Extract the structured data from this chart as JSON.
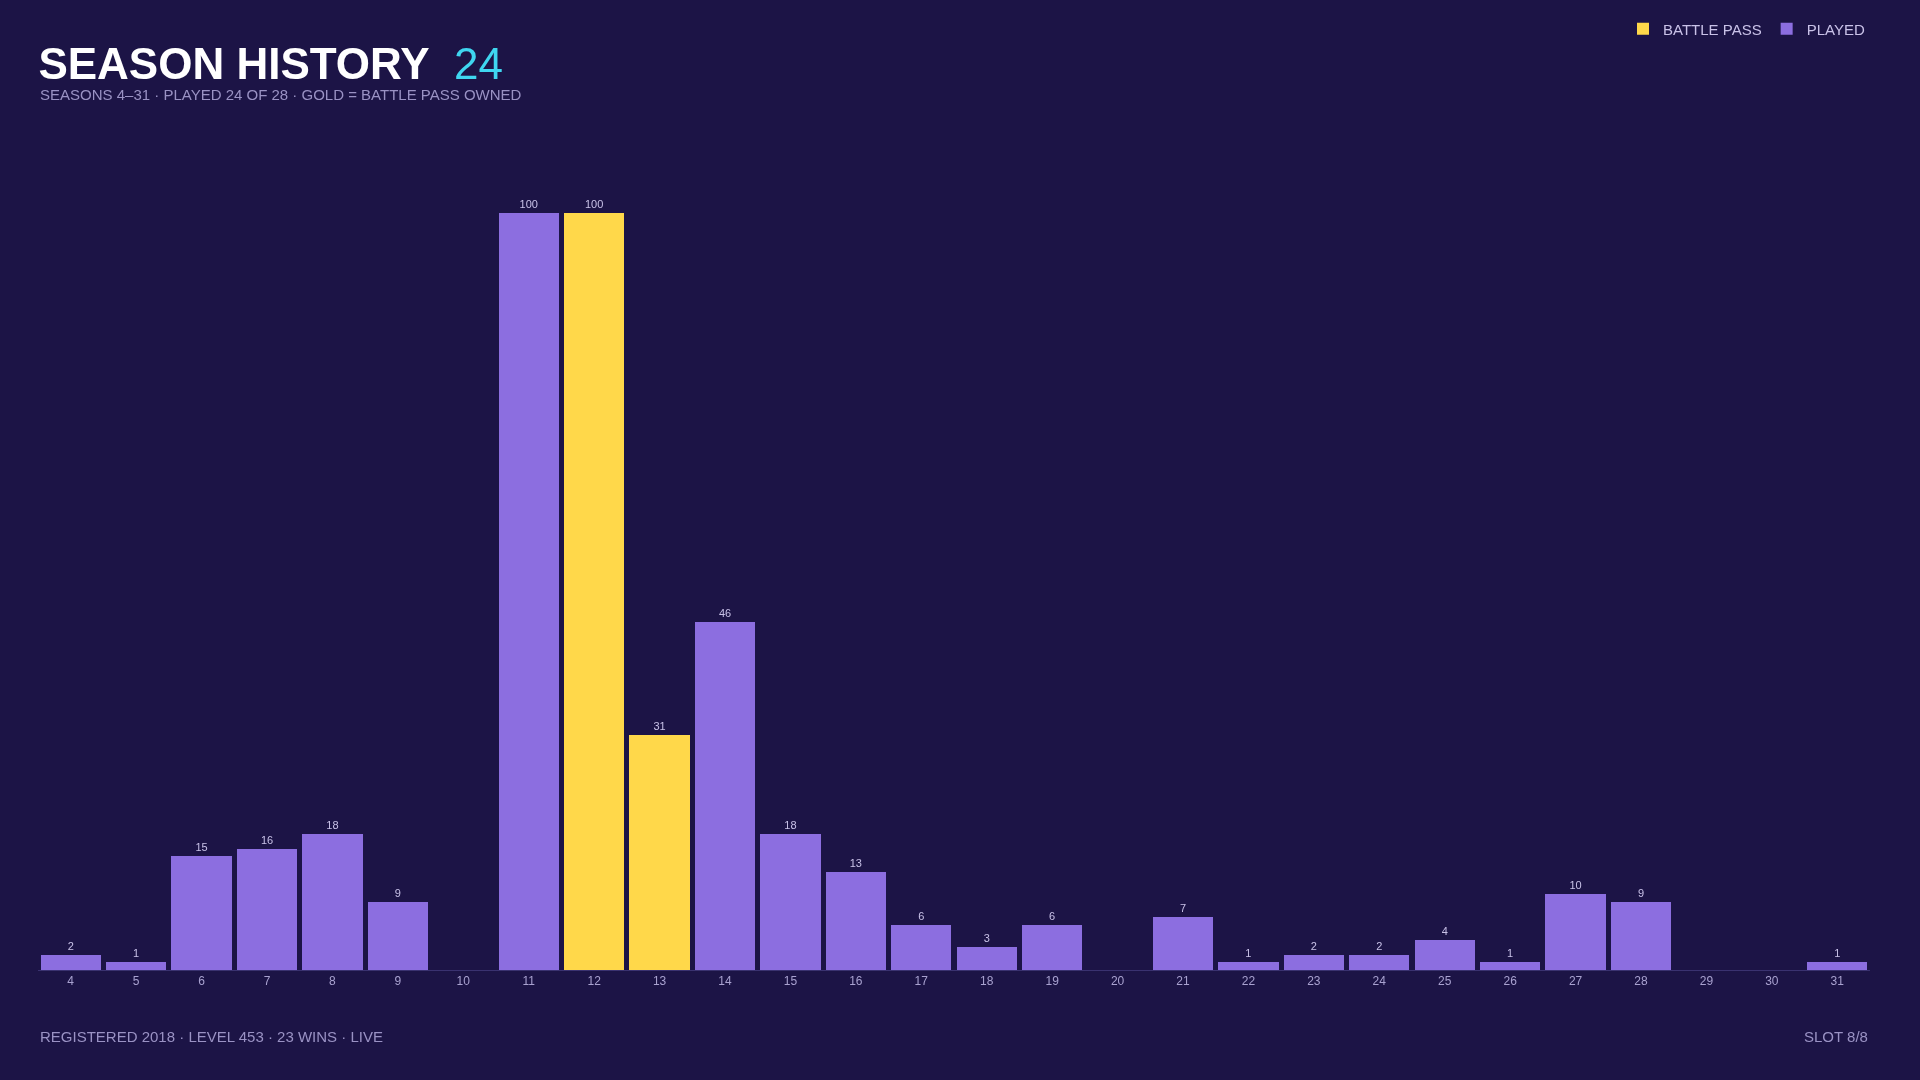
{
  "chart_data": {
    "type": "bar",
    "title": "SEASON HISTORY 24",
    "subtitle": "SEASONS 4–31 · PLAYED 24 OF 28 · GOLD = BATTLE PASS OWNED",
    "categories": [
      "4",
      "5",
      "6",
      "7",
      "8",
      "9",
      "10",
      "11",
      "12",
      "13",
      "14",
      "15",
      "16",
      "17",
      "18",
      "19",
      "20",
      "21",
      "22",
      "23",
      "24",
      "25",
      "26",
      "27",
      "28",
      "29",
      "30",
      "31"
    ],
    "stacked": true,
    "data_labels": true,
    "series": [
      {
        "name": "BATTLE PASS",
        "color": "#ffd84a",
        "values": [
          null,
          null,
          null,
          null,
          null,
          null,
          null,
          null,
          100,
          31,
          null,
          null,
          null,
          null,
          null,
          null,
          null,
          null,
          null,
          null,
          null,
          null,
          null,
          null,
          null,
          null,
          null,
          null
        ]
      },
      {
        "name": "PLAYED",
        "color": "#8c6ee0",
        "values": [
          2,
          1,
          15,
          16,
          18,
          9,
          null,
          100,
          null,
          null,
          46,
          18,
          13,
          6,
          3,
          6,
          null,
          7,
          1,
          2,
          2,
          4,
          1,
          10,
          9,
          null,
          null,
          1
        ]
      }
    ],
    "legend": "top right",
    "tick_labels": "x",
    "annotations": [
      "REGISTERED 2018 · LEVEL 453 · 23 WINS · LIVE",
      "SLOT 8/8"
    ]
  }
}
